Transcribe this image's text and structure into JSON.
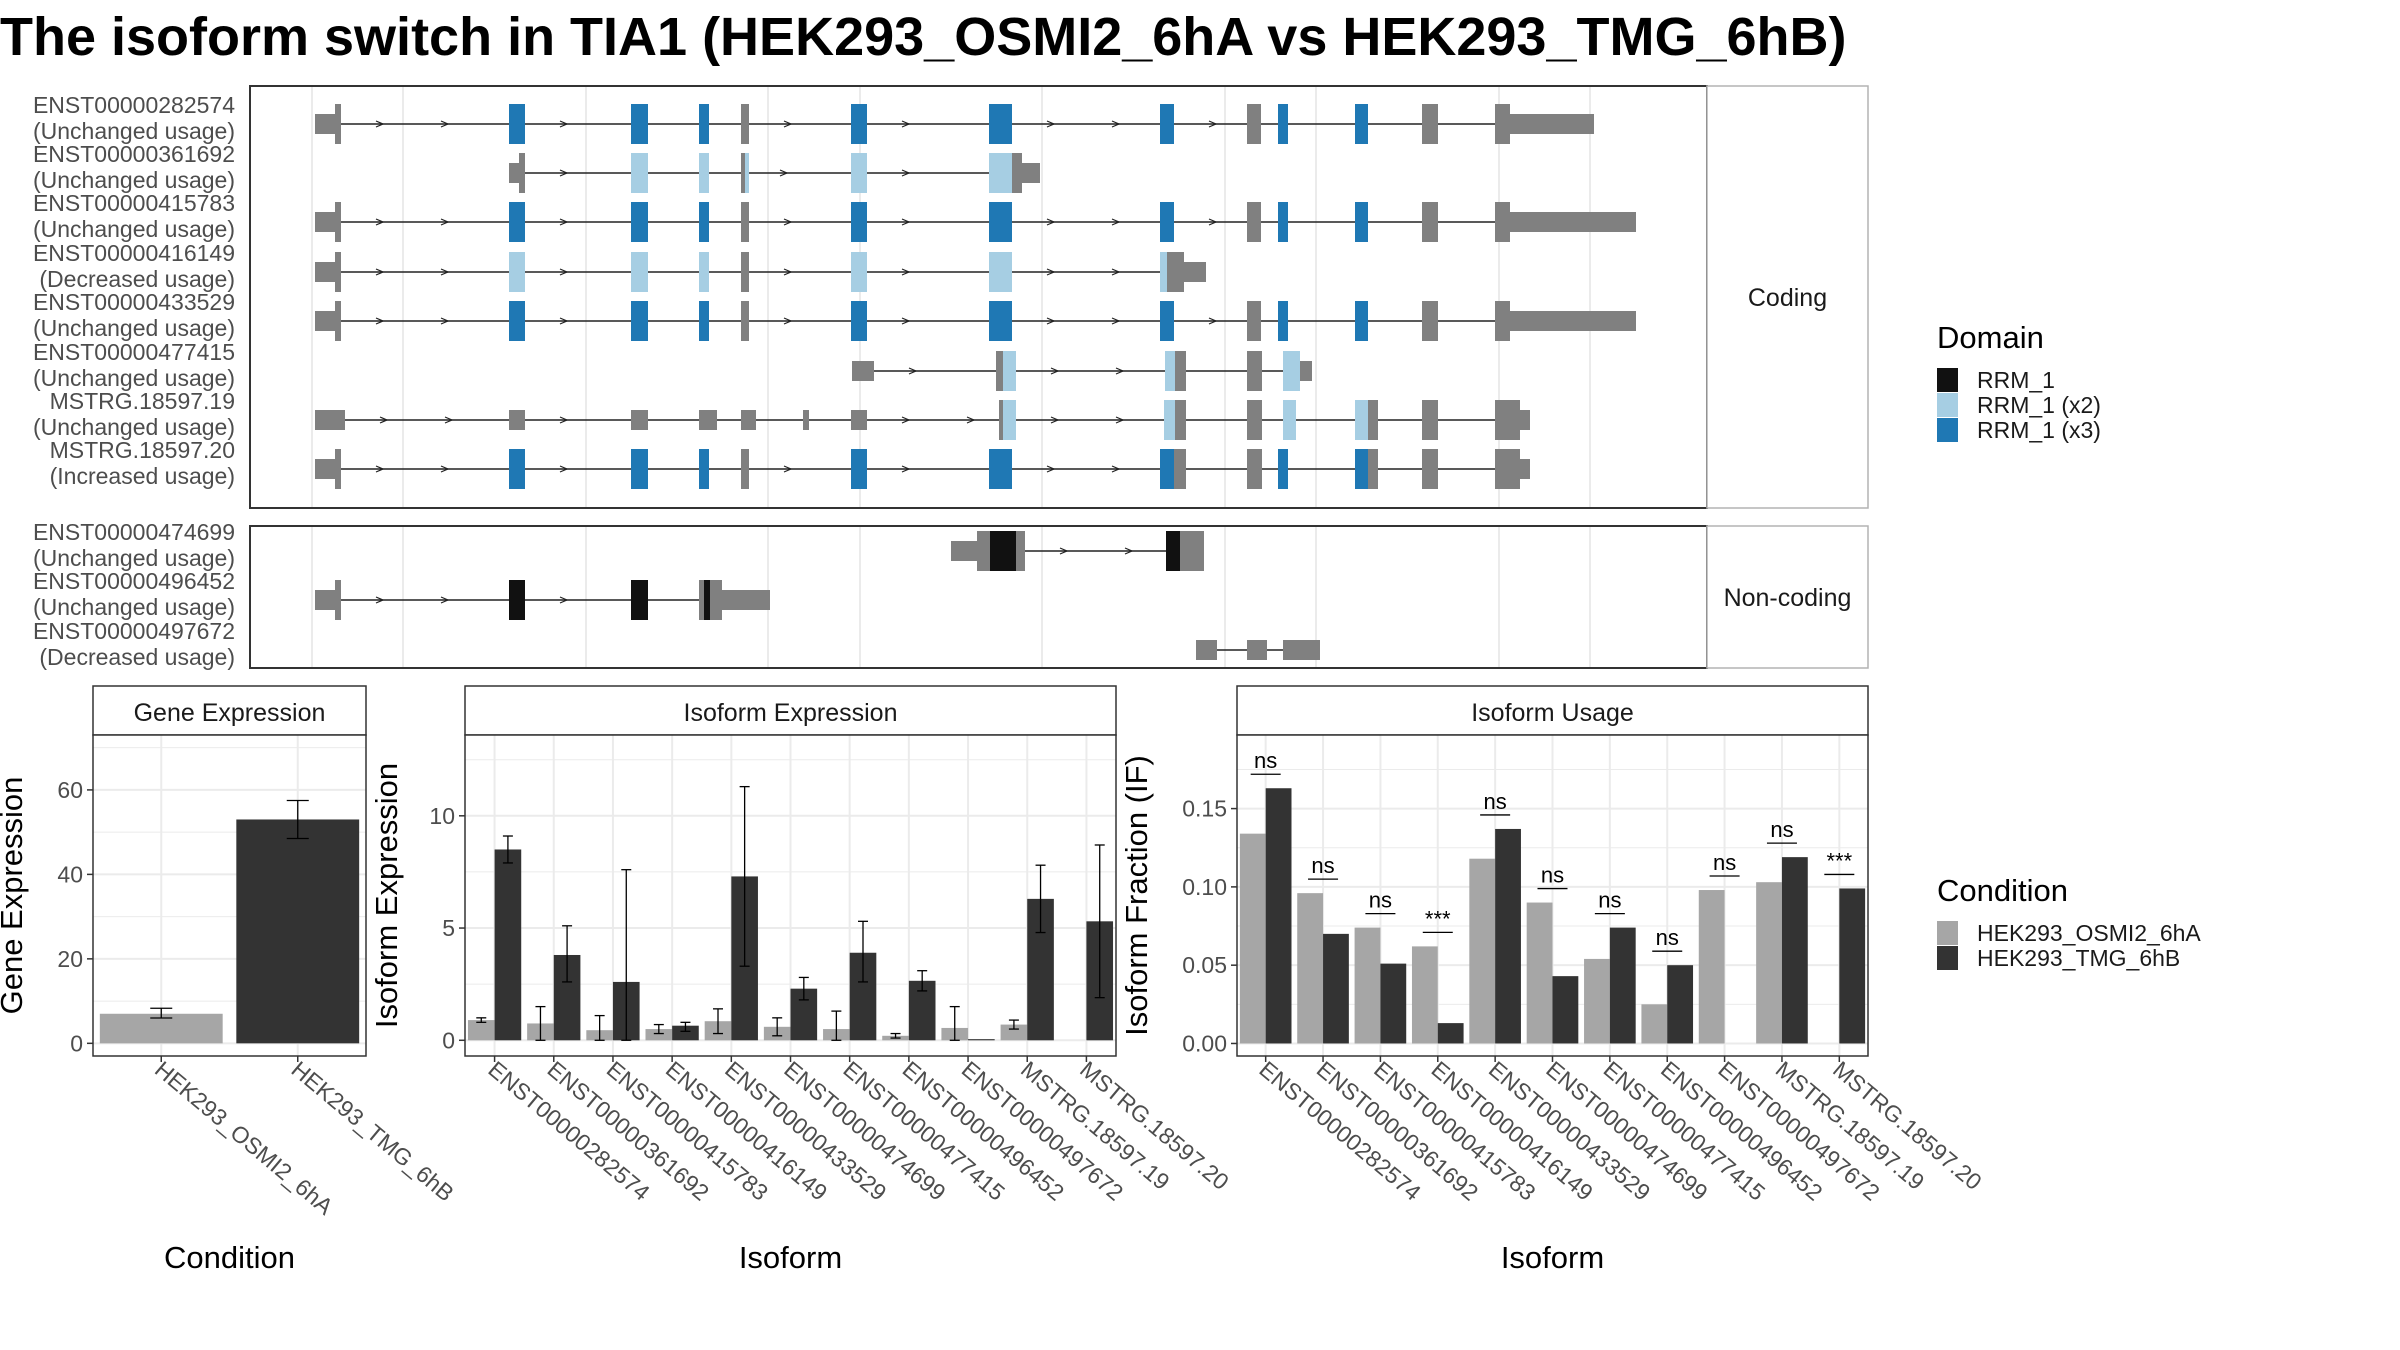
{
  "title": "The isoform switch in TIA1 (HEK293_OSMI2_6hA vs HEK293_TMG_6hB)",
  "colors": {
    "rrm1": "#111111",
    "rrm1_x2": "#a6cee3",
    "rrm1_x3": "#1f78b4",
    "intron": "#222222",
    "exon": "#808080",
    "cond_a": "#a6a6a6",
    "cond_b": "#333333",
    "grid": "#ebebeb",
    "panel_border": "#333333"
  },
  "structure": {
    "panel_coding_label": "Coding",
    "panel_noncoding_label": "Non-coding",
    "coding": [
      {
        "id": "ENST00000282574",
        "usage": "(Unchanged usage)"
      },
      {
        "id": "ENST00000361692",
        "usage": "(Unchanged usage)"
      },
      {
        "id": "ENST00000415783",
        "usage": "(Unchanged usage)"
      },
      {
        "id": "ENST00000416149",
        "usage": "(Decreased usage)"
      },
      {
        "id": "ENST00000433529",
        "usage": "(Unchanged usage)"
      },
      {
        "id": "ENST00000477415",
        "usage": "(Unchanged usage)"
      },
      {
        "id": "MSTRG.18597.19",
        "usage": "(Unchanged usage)"
      },
      {
        "id": "MSTRG.18597.20",
        "usage": "(Increased usage)"
      }
    ],
    "noncoding": [
      {
        "id": "ENST00000474699",
        "usage": "(Unchanged usage)"
      },
      {
        "id": "ENST00000496452",
        "usage": "(Unchanged usage)"
      },
      {
        "id": "ENST00000497672",
        "usage": "(Decreased usage)"
      }
    ]
  },
  "legend_domain": {
    "title": "Domain",
    "items": [
      {
        "label": "RRM_1",
        "color": "#111111"
      },
      {
        "label": "RRM_1 (x2)",
        "color": "#a6cee3"
      },
      {
        "label": "RRM_1 (x3)",
        "color": "#1f78b4"
      }
    ]
  },
  "legend_condition": {
    "title": "Condition",
    "items": [
      {
        "label": "HEK293_OSMI2_6hA",
        "color": "#a6a6a6"
      },
      {
        "label": "HEK293_TMG_6hB",
        "color": "#333333"
      }
    ]
  },
  "chart_data": [
    {
      "type": "bar",
      "title": "Gene Expression",
      "xlabel": "Condition",
      "ylabel": "Gene Expression",
      "categories": [
        "HEK293_OSMI2_6hA",
        "HEK293_TMG_6hB"
      ],
      "values": [
        7,
        53
      ],
      "errors": [
        [
          6,
          8.3
        ],
        [
          48.5,
          57.5
        ]
      ],
      "ylim": [
        -3,
        73
      ],
      "yticks": [
        0,
        20,
        40,
        60
      ],
      "grid": true
    },
    {
      "type": "bar",
      "title": "Isoform Expression",
      "xlabel": "Isoform",
      "ylabel": "Isoform Expression",
      "categories": [
        "ENST00000282574",
        "ENST00000361692",
        "ENST00000415783",
        "ENST00000416149",
        "ENST00000433529",
        "ENST00000474699",
        "ENST00000477415",
        "ENST00000496452",
        "ENST00000497672",
        "MSTRG.18597.19",
        "MSTRG.18597.20"
      ],
      "series": [
        {
          "name": "HEK293_OSMI2_6hA",
          "values": [
            0.9,
            0.75,
            0.45,
            0.5,
            0.85,
            0.6,
            0.5,
            0.2,
            0.55,
            0.7,
            0.0
          ],
          "errors": [
            [
              0.8,
              1.0
            ],
            [
              0.0,
              1.5
            ],
            [
              0.0,
              1.1
            ],
            [
              0.3,
              0.7
            ],
            [
              0.3,
              1.4
            ],
            [
              0.2,
              1.0
            ],
            [
              0.0,
              1.3
            ],
            [
              0.1,
              0.3
            ],
            [
              0.0,
              1.5
            ],
            [
              0.5,
              0.9
            ],
            [
              0,
              0
            ]
          ]
        },
        {
          "name": "HEK293_TMG_6hB",
          "values": [
            8.5,
            3.8,
            2.6,
            0.65,
            7.3,
            2.3,
            3.9,
            2.65,
            0.05,
            6.3,
            5.3
          ],
          "errors": [
            [
              7.9,
              9.1
            ],
            [
              2.6,
              5.1
            ],
            [
              0.0,
              7.6
            ],
            [
              0.4,
              0.8
            ],
            [
              3.3,
              11.3
            ],
            [
              1.8,
              2.8
            ],
            [
              2.6,
              5.3
            ],
            [
              2.2,
              3.1
            ],
            [
              0,
              0
            ],
            [
              4.8,
              7.8
            ],
            [
              1.9,
              8.7
            ]
          ]
        }
      ],
      "ylim": [
        -0.7,
        13.6
      ],
      "yticks": [
        0,
        5,
        10
      ],
      "grid": true
    },
    {
      "type": "bar",
      "title": "Isoform Usage",
      "xlabel": "Isoform",
      "ylabel": "Isoform Fraction (IF)",
      "categories": [
        "ENST00000282574",
        "ENST00000361692",
        "ENST00000415783",
        "ENST00000416149",
        "ENST00000433529",
        "ENST00000474699",
        "ENST00000477415",
        "ENST00000496452",
        "ENST00000497672",
        "MSTRG.18597.19",
        "MSTRG.18597.20"
      ],
      "series": [
        {
          "name": "HEK293_OSMI2_6hA",
          "values": [
            0.134,
            0.096,
            0.074,
            0.062,
            0.118,
            0.09,
            0.054,
            0.025,
            0.098,
            0.103,
            0.0
          ]
        },
        {
          "name": "HEK293_TMG_6hB",
          "values": [
            0.163,
            0.07,
            0.051,
            0.013,
            0.137,
            0.043,
            0.074,
            0.05,
            0.0,
            0.119,
            0.099
          ]
        }
      ],
      "significance": [
        "ns",
        "ns",
        "ns",
        "***",
        "ns",
        "ns",
        "ns",
        "ns",
        "ns",
        "ns",
        "***"
      ],
      "ylim": [
        -0.008,
        0.197
      ],
      "yticks": [
        0.0,
        0.05,
        0.1,
        0.15
      ],
      "ytick_labels": [
        "0.00",
        "0.05",
        "0.10",
        "0.15"
      ],
      "grid": true
    }
  ]
}
